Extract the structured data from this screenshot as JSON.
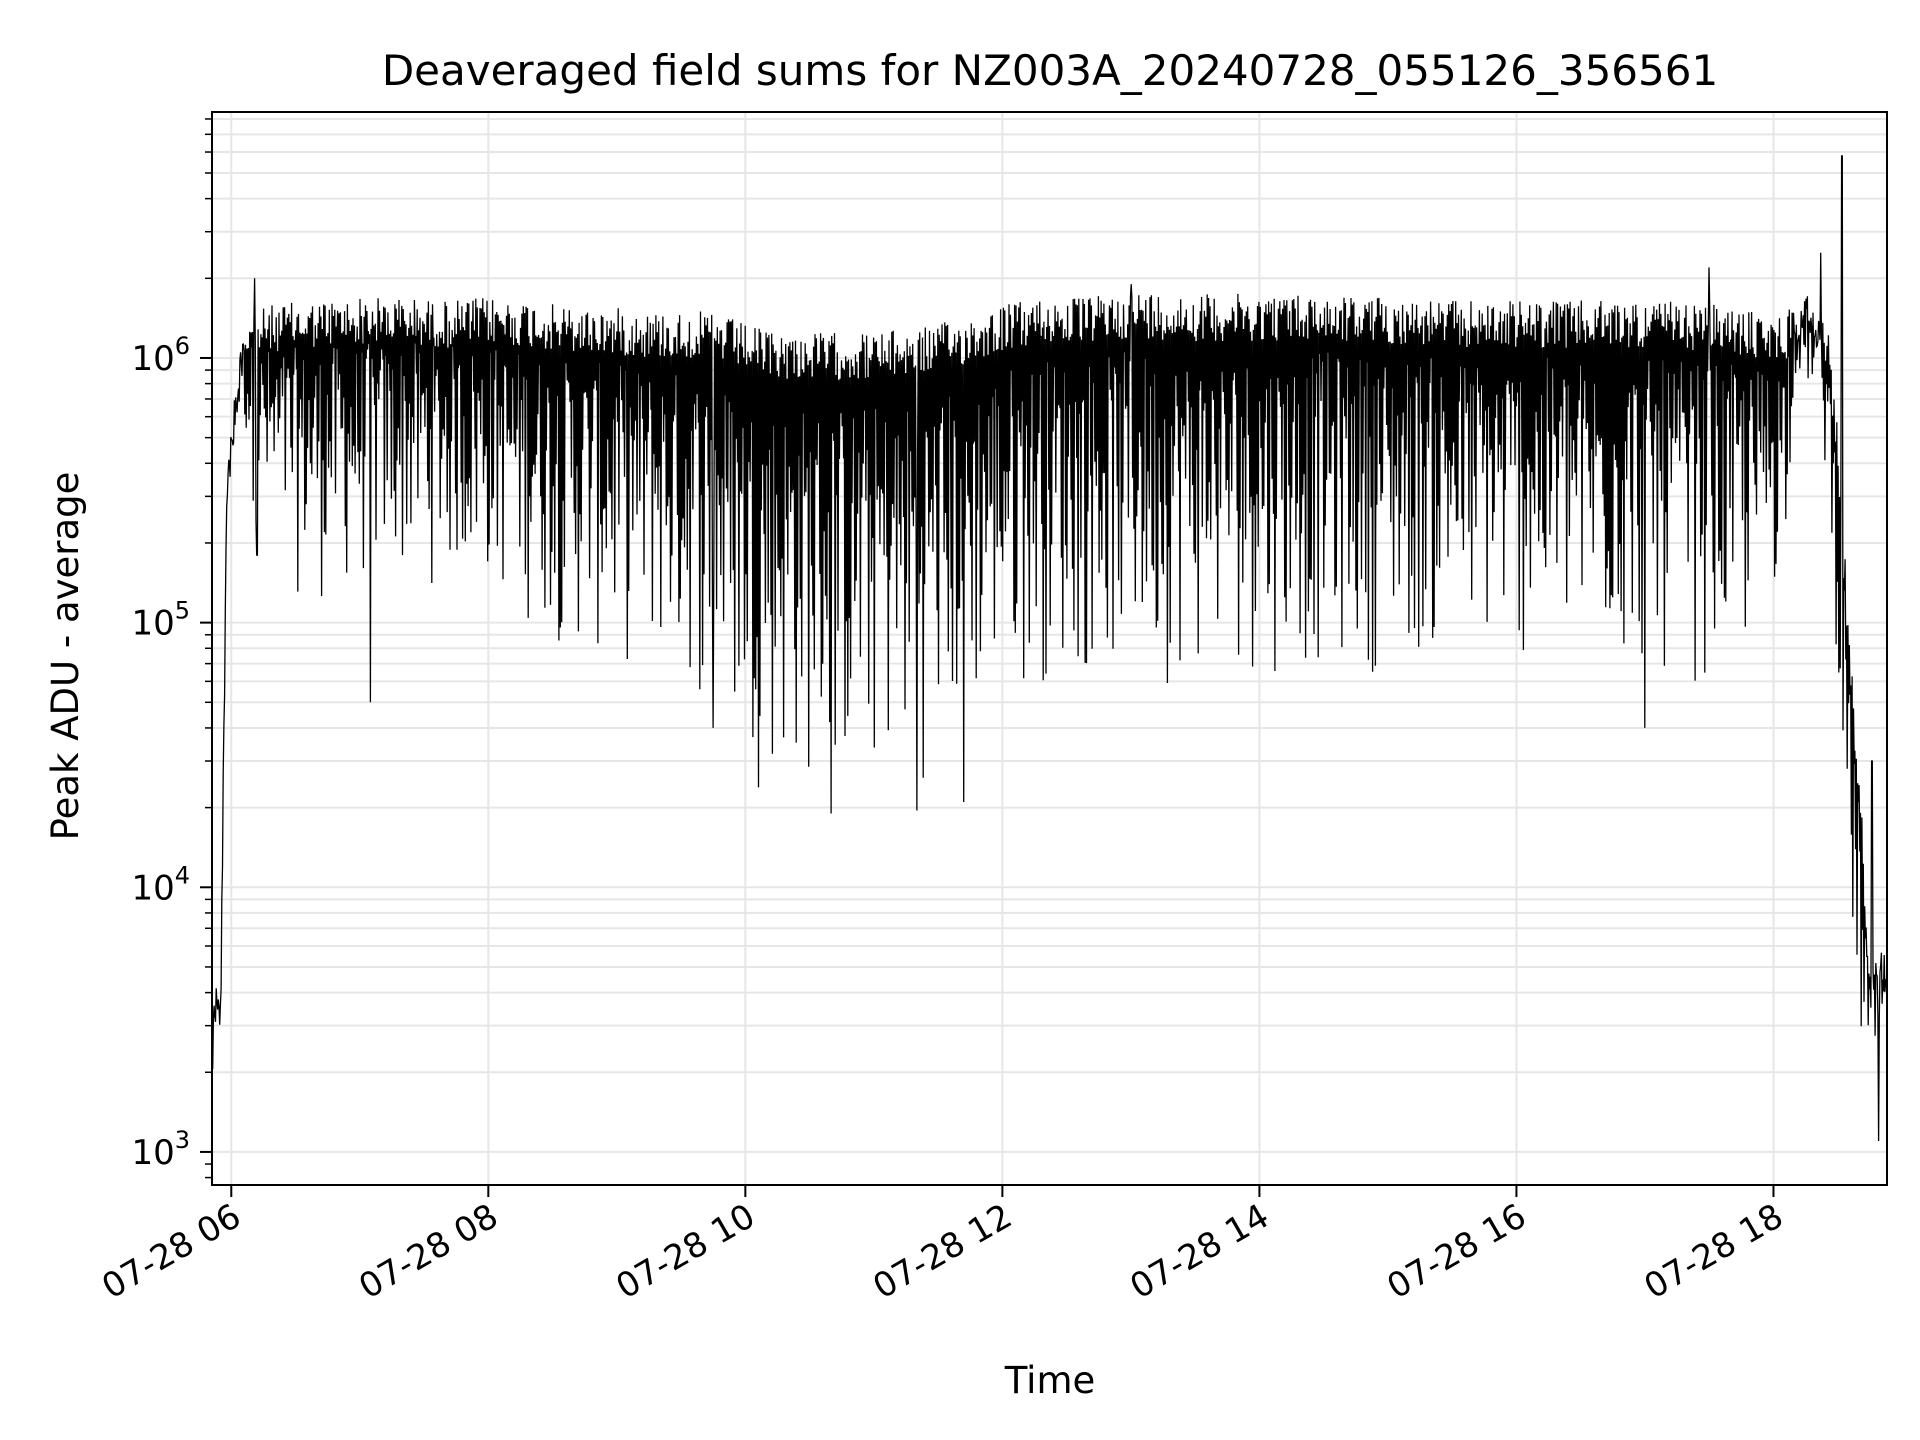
{
  "chart_data": {
    "type": "line",
    "title": "Deaveraged field sums for NZ003A_20240728_055126_356561",
    "xlabel": "Time",
    "ylabel": "Peak ADU - average",
    "yscale": "log",
    "grid": true,
    "line_color": "#000000",
    "grid_color": "#e6e6e6",
    "xlim": [
      "2024-07-28 05:51",
      "2024-07-28 18:53"
    ],
    "ylim": [
      750,
      8500000
    ],
    "x_ticks": [
      {
        "value": "2024-07-28 06:00",
        "label": "07-28 06"
      },
      {
        "value": "2024-07-28 08:00",
        "label": "07-28 08"
      },
      {
        "value": "2024-07-28 10:00",
        "label": "07-28 10"
      },
      {
        "value": "2024-07-28 12:00",
        "label": "07-28 12"
      },
      {
        "value": "2024-07-28 14:00",
        "label": "07-28 14"
      },
      {
        "value": "2024-07-28 16:00",
        "label": "07-28 16"
      },
      {
        "value": "2024-07-28 18:00",
        "label": "07-28 18"
      }
    ],
    "y_ticks": [
      {
        "value": 1000,
        "base": "10",
        "exp": "3"
      },
      {
        "value": 10000,
        "base": "10",
        "exp": "4"
      },
      {
        "value": 100000,
        "base": "10",
        "exp": "5"
      },
      {
        "value": 1000000,
        "base": "10",
        "exp": "6"
      }
    ],
    "envelope": {
      "description_units": "time HH:MM on 2024-07-28, values in ADU",
      "times": [
        "05:51",
        "05:55",
        "05:58",
        "06:05",
        "06:10",
        "06:20",
        "06:40",
        "07:00",
        "07:20",
        "07:40",
        "08:00",
        "08:20",
        "08:40",
        "09:00",
        "09:20",
        "09:40",
        "09:55",
        "10:05",
        "10:20",
        "10:40",
        "11:00",
        "11:20",
        "11:40",
        "12:00",
        "12:20",
        "12:40",
        "13:00",
        "13:30",
        "14:00",
        "14:30",
        "15:00",
        "15:30",
        "16:00",
        "16:30",
        "17:00",
        "17:30",
        "17:50",
        "18:05",
        "18:10",
        "18:18",
        "18:25",
        "18:30",
        "18:35",
        "18:40",
        "18:45",
        "18:50",
        "18:53"
      ],
      "upper": [
        4000,
        5000,
        400000,
        1400000,
        1500000,
        1600000,
        1650000,
        1700000,
        1700000,
        1650000,
        1700000,
        1650000,
        1550000,
        1550000,
        1500000,
        1500000,
        1400000,
        1300000,
        1250000,
        1250000,
        1250000,
        1300000,
        1400000,
        1600000,
        1700000,
        1700000,
        1800000,
        1750000,
        1750000,
        1750000,
        1700000,
        1650000,
        1650000,
        1650000,
        1650000,
        1600000,
        1500000,
        1450000,
        1700000,
        1800000,
        1400000,
        600000,
        100000,
        30000,
        5000,
        6000,
        5500
      ],
      "lower": [
        1200,
        2200,
        300000,
        600000,
        250000,
        130000,
        110000,
        120000,
        130000,
        130000,
        120000,
        90000,
        70000,
        60000,
        60000,
        45000,
        30000,
        23000,
        21000,
        20000,
        21000,
        23000,
        30000,
        50000,
        55000,
        55000,
        55000,
        56000,
        60000,
        60000,
        62000,
        65000,
        62000,
        60000,
        55000,
        55000,
        60000,
        150000,
        800000,
        700000,
        300000,
        60000,
        7000,
        2000,
        1500,
        2000,
        1800
      ],
      "spikes": [
        {
          "time": "06:11",
          "value": 2000000
        },
        {
          "time": "06:12",
          "value": 180000
        },
        {
          "time": "07:05",
          "value": 50000
        },
        {
          "time": "09:45",
          "value": 40000
        },
        {
          "time": "10:40",
          "value": 19000
        },
        {
          "time": "11:20",
          "value": 19500
        },
        {
          "time": "11:42",
          "value": 21000
        },
        {
          "time": "13:00",
          "value": 1900000
        },
        {
          "time": "17:00",
          "value": 40000
        },
        {
          "time": "17:30",
          "value": 2200000
        },
        {
          "time": "18:22",
          "value": 2500000
        },
        {
          "time": "18:32",
          "value": 5800000
        },
        {
          "time": "18:46",
          "value": 30000
        },
        {
          "time": "18:49",
          "value": 1100
        }
      ]
    }
  }
}
